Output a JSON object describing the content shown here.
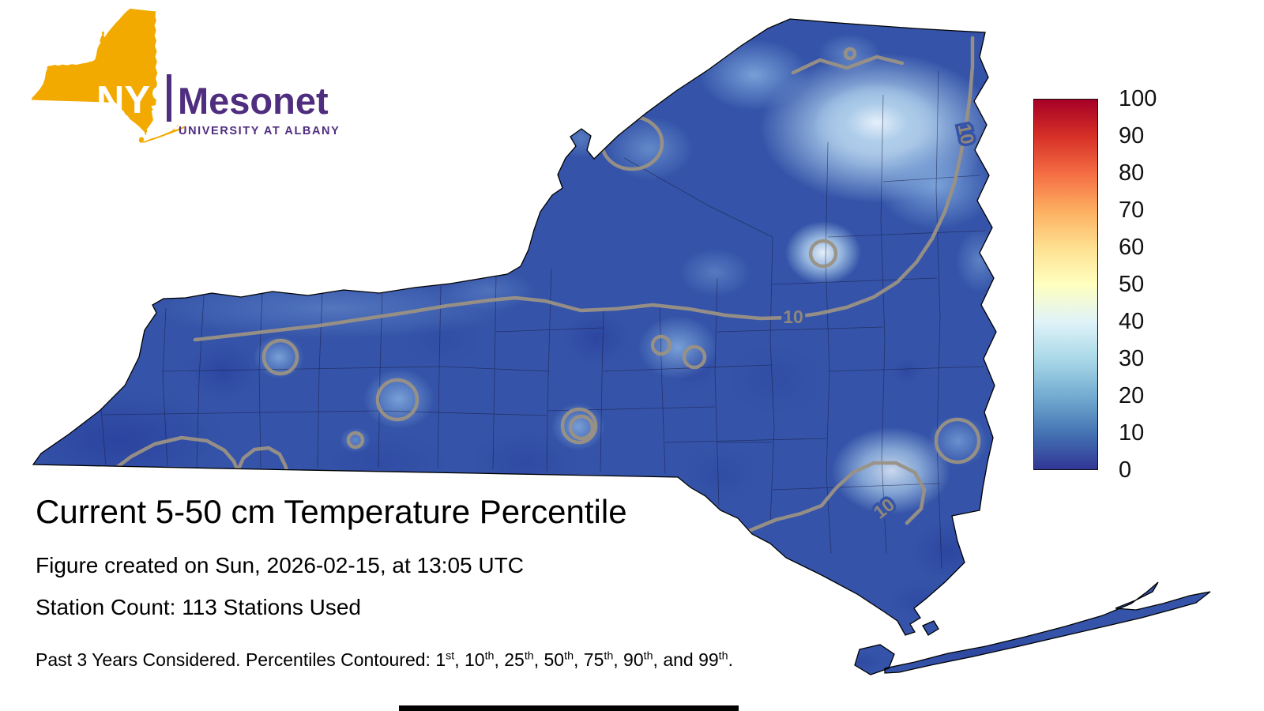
{
  "logo": {
    "acronym": "NYS",
    "name": "Mesonet",
    "subtitle": "UNIVERSITY AT ALBANY",
    "state_color": "#F2A900",
    "brand_purple": "#4F2D7F"
  },
  "texts": {
    "title": "Current 5-50 cm Temperature Percentile",
    "created": "Figure created on Sun, 2026-02-15, at 13:05 UTC",
    "station_count": "Station Count: 113 Stations Used"
  },
  "footnote": {
    "prefix": "Past 3 Years Considered. Percentiles Contoured: ",
    "percentiles": [
      {
        "value": "1",
        "suffix": "st"
      },
      {
        "value": "10",
        "suffix": "th"
      },
      {
        "value": "25",
        "suffix": "th"
      },
      {
        "value": "50",
        "suffix": "th"
      },
      {
        "value": "75",
        "suffix": "th"
      },
      {
        "value": "90",
        "suffix": "th"
      },
      {
        "value": "99",
        "suffix": "th"
      }
    ],
    "separator": ", ",
    "conjunction": "and ",
    "terminator": "."
  },
  "colorbar": {
    "ticks": [
      "100",
      "90",
      "80",
      "70",
      "60",
      "50",
      "40",
      "30",
      "20",
      "10",
      "0"
    ],
    "gradient_stops": [
      {
        "value": 0,
        "color": "#313695"
      },
      {
        "value": 10,
        "color": "#4575b4"
      },
      {
        "value": 20,
        "color": "#74add1"
      },
      {
        "value": 30,
        "color": "#abd9e9"
      },
      {
        "value": 40,
        "color": "#e0f3f8"
      },
      {
        "value": 50,
        "color": "#ffffbf"
      },
      {
        "value": 60,
        "color": "#fee090"
      },
      {
        "value": 70,
        "color": "#fdae61"
      },
      {
        "value": 80,
        "color": "#f46d43"
      },
      {
        "value": 90,
        "color": "#d73027"
      },
      {
        "value": 100,
        "color": "#a50026"
      }
    ]
  },
  "map": {
    "region": "New York State",
    "contour_label": "10",
    "base_color": "#3554a9"
  },
  "chart_data": {
    "type": "heatmap",
    "title": "Current 5-50 cm Temperature Percentile",
    "region": "New York State",
    "colorbar_range": [
      0,
      100
    ],
    "colorbar_ticks": [
      0,
      10,
      20,
      30,
      40,
      50,
      60,
      70,
      80,
      90,
      100
    ],
    "contour_levels_defined": [
      1,
      10,
      25,
      50,
      75,
      90,
      99
    ],
    "contour_level_visible": 10,
    "field_summary": "Soil temperature percentile values are predominantly 0-20 across the state (dark to medium blue), with lighter patches around 30-45 in the Adirondacks / north country and isolated 25-40 spots in central, western and southeastern NY.",
    "stations_used": 113,
    "created": "Sun, 2026-02-15, 13:05 UTC"
  }
}
